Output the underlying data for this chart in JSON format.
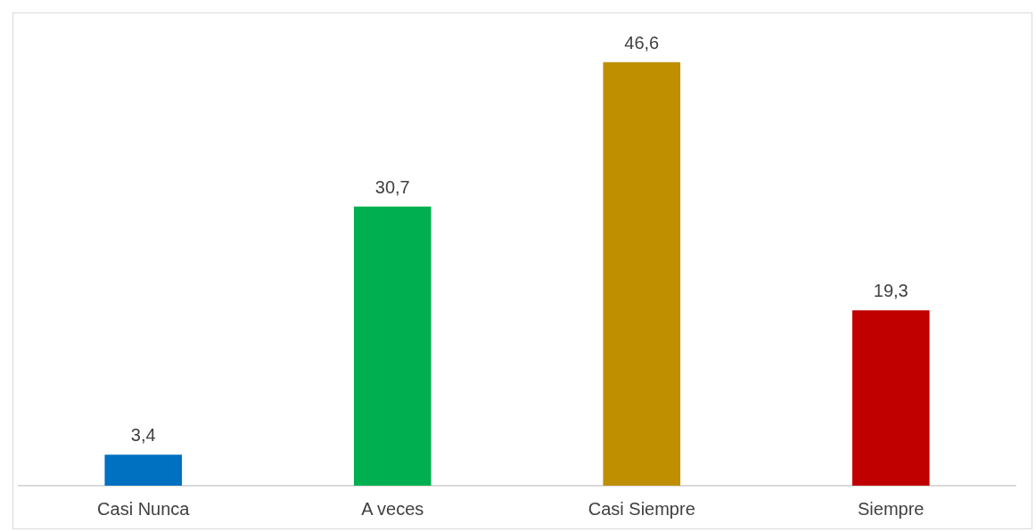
{
  "chart_data": {
    "type": "bar",
    "categories": [
      "Casi Nunca",
      "A veces",
      "Casi Siempre",
      "Siempre"
    ],
    "values": [
      3.4,
      30.7,
      46.6,
      19.3
    ],
    "colors": [
      "#0070c0",
      "#00b050",
      "#bf8f00",
      "#c00000"
    ],
    "value_labels": [
      "3,4",
      "30,7",
      "46,6",
      "19,3"
    ]
  }
}
